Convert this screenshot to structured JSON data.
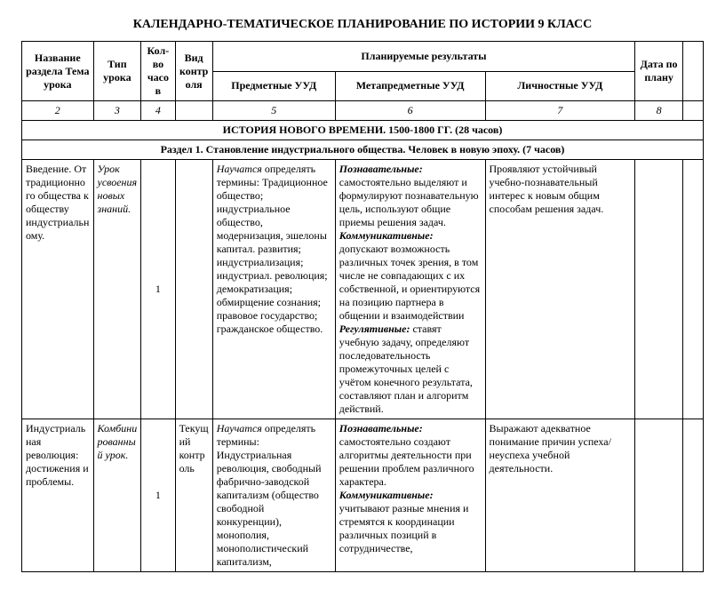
{
  "doc": {
    "title": "КАЛЕНДАРНО-ТЕМАТИЧЕСКОЕ ПЛАНИРОВАНИЕ ПО ИСТОРИИ 9 КЛАСС"
  },
  "headers": {
    "section_name": "Название раздела Тема урока",
    "lesson_type": "Тип урока",
    "hours": "Кол-во часов",
    "control": "Вид контроля",
    "planned_results": "Планируемые результаты",
    "subject_uud": "Предметные УУД",
    "meta_uud": "Метапредметные УУД",
    "personal_uud": "Личностные УУД",
    "date": "Дата по плану"
  },
  "num_row": {
    "c2": "2",
    "c3": "3",
    "c4": "4",
    "c5": "5",
    "c6": "6",
    "c7": "7",
    "c8": "8"
  },
  "sections": {
    "s1": "ИСТОРИЯ НОВОГО ВРЕМЕНИ. 1500-1800 ГГ. (28 часов)",
    "s2": "Раздел 1. Становление индустриального общества. Человек в новую эпоху. (7 часов)"
  },
  "rows": {
    "r1": {
      "name": "Введение. От традиционного общества к обществу индустриальному.",
      "type": "Урок усвоения новых знаний.",
      "hours": "1",
      "control": "",
      "pred_lead": "Научатся",
      "pred_rest": " определять термины: Традиционное общество; индустриальное общество, модернизация, эшелоны капитал. развития; индустриализация; индустриал. революция; демократизация; обмирщение сознания; правовое государство; гражданское общество.",
      "meta_l1": "Познавательные:",
      "meta_t1": " самостоятельно выделяют и формулируют познавательную цель, используют общие приемы решения задач.",
      "meta_l2": "Коммуникативные:",
      "meta_t2": " допускают возможность различных точек зрения, в том числе не совпадающих с их собственной, и ориентируются на позицию партнера в общении и взаимодействии",
      "meta_l3": "Регулятивные:",
      "meta_t3": " ставят учебную задачу, определяют последовательность промежуточных целей с учётом конечного результата, составляют план и алгоритм действий.",
      "lich": " Проявляют устойчивый учебно-познавательный интерес к новым общим способам решения задач."
    },
    "r2": {
      "name": "Индустриальная революция: достижения и проблемы.",
      "type": "Комбинированный урок.",
      "hours": "1",
      "control": "Текущий контроль",
      "pred_lead": "Научатся",
      "pred_rest": " определять термины: Индустриальная революция, свободный фабрично-заводской капитализм (общество свободной конкуренции), монополия, монополистический капитализм,",
      "meta_l1": "Познавательные:",
      "meta_t1": " самостоятельно создают алгоритмы деятельности при решении проблем различного характера.",
      "meta_l2": "Коммуникативные:",
      "meta_t2": " учитывают разные мнения и стремятся к координации различных позиций в сотрудничестве,",
      "lich": "Выражают адекватное понимание причин успеха/неуспеха учебной деятельности."
    }
  }
}
